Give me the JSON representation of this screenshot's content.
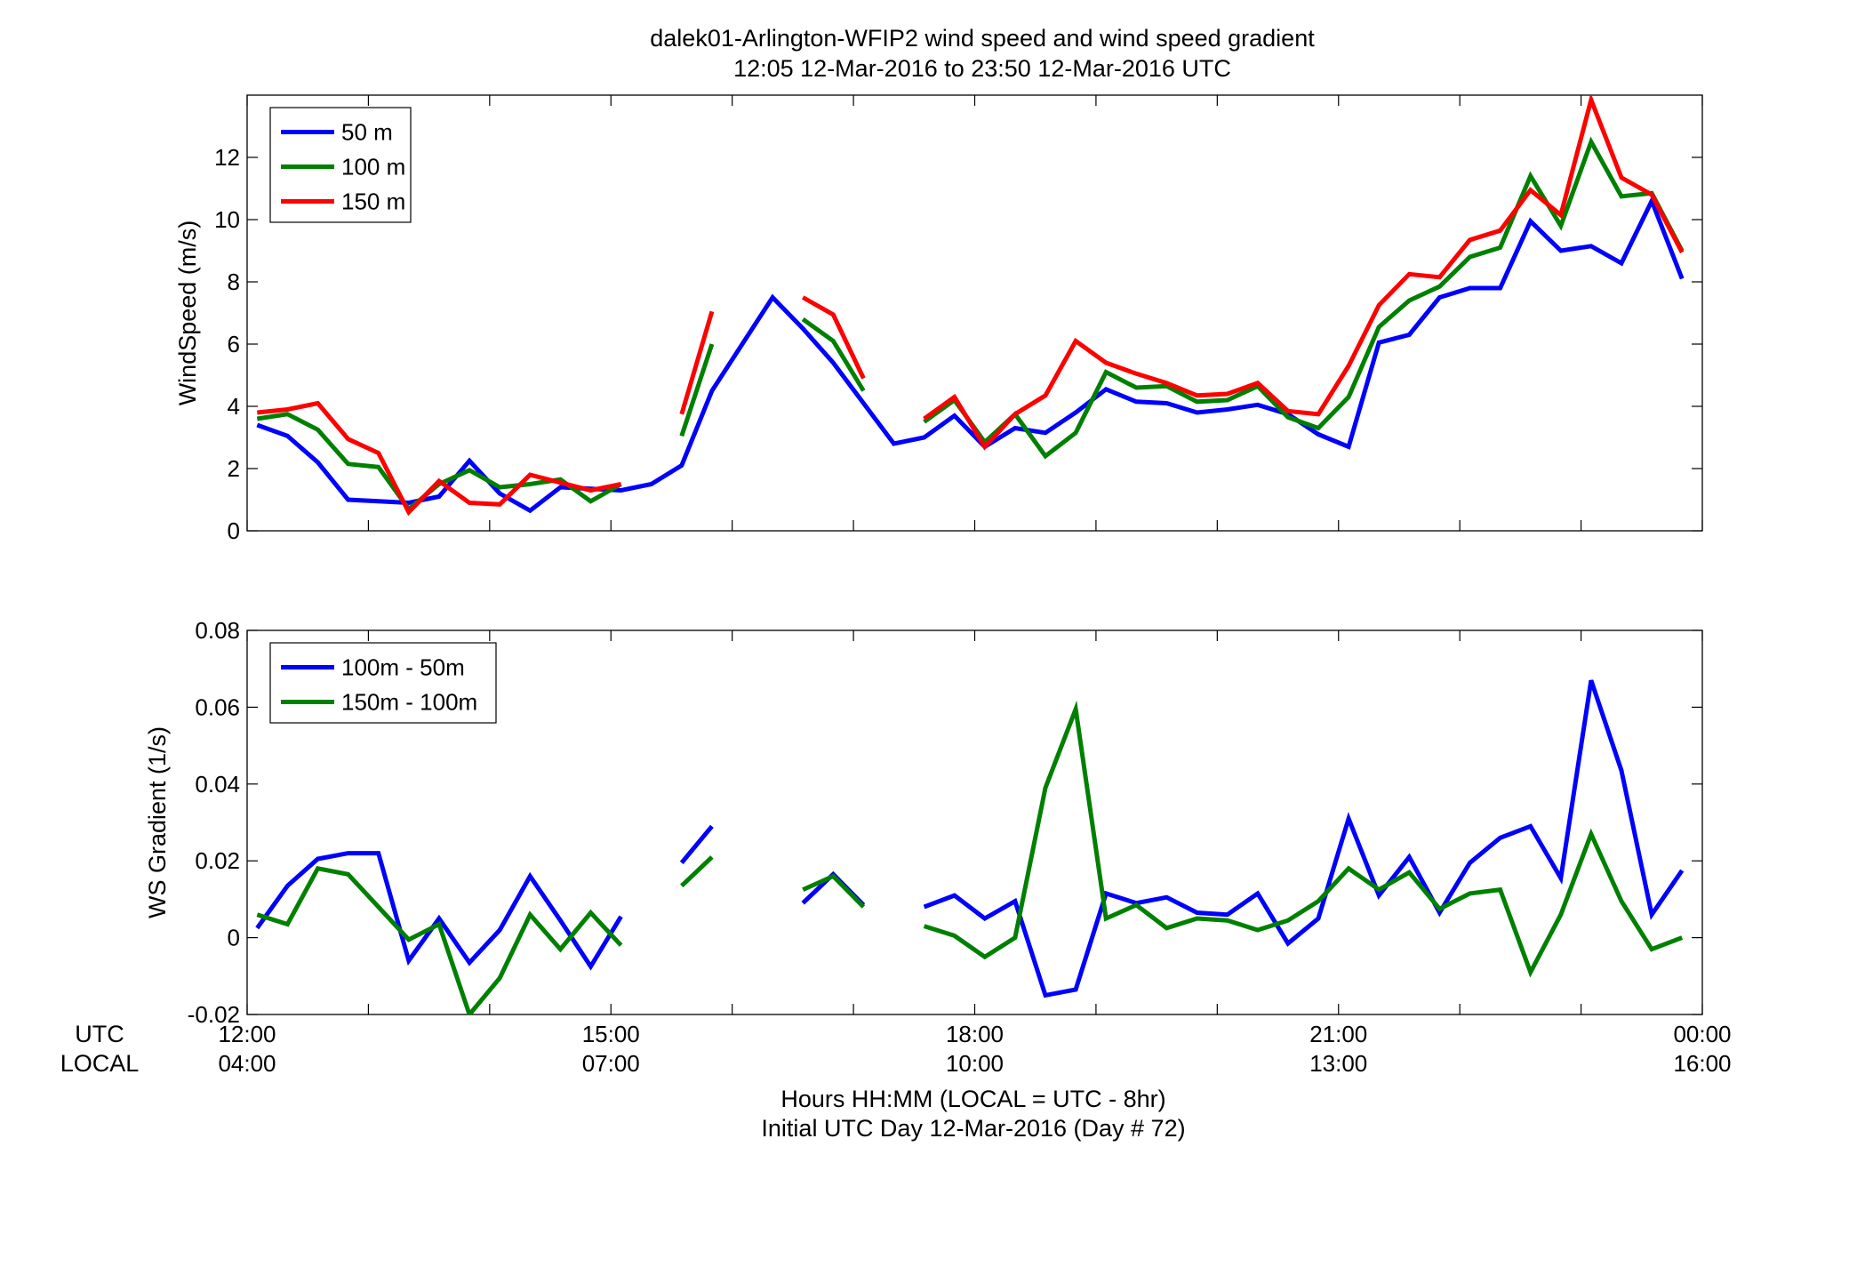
{
  "figure": {
    "title_line1": "dalek01-Arlington-WFIP2  wind speed and wind speed gradient",
    "title_line2": "12:05 12-Mar-2016 to 23:50 12-Mar-2016  UTC",
    "xlabel_line1": "Hours HH:MM  (LOCAL = UTC - 8hr)",
    "xlabel_line2": "Initial UTC Day 12-Mar-2016 (Day # 72)",
    "utc_row_label": "UTC",
    "local_row_label": "LOCAL",
    "utc_ticks": [
      "12:00",
      "15:00",
      "18:00",
      "21:00",
      "00:00"
    ],
    "local_ticks": [
      "04:00",
      "07:00",
      "10:00",
      "13:00",
      "16:00"
    ],
    "colors": {
      "blue": "#0000ff",
      "green": "#008000",
      "red": "#ff0000"
    }
  },
  "chart_data": [
    {
      "type": "line",
      "ylabel": "WindSpeed (m/s)",
      "xlim": [
        12.0,
        24.0
      ],
      "ylim": [
        0,
        14
      ],
      "yticks": [
        "0",
        "2",
        "4",
        "6",
        "8",
        "10",
        "12"
      ],
      "legend_position": "top-left",
      "x_hours": [
        12.083,
        12.333,
        12.583,
        12.833,
        13.083,
        13.333,
        13.583,
        13.833,
        14.083,
        14.333,
        14.583,
        14.833,
        15.083,
        15.333,
        15.583,
        15.833,
        16.083,
        16.333,
        16.583,
        16.833,
        17.083,
        17.333,
        17.583,
        17.833,
        18.083,
        18.333,
        18.583,
        18.833,
        19.083,
        19.333,
        19.583,
        19.833,
        20.083,
        20.333,
        20.583,
        20.833,
        21.083,
        21.333,
        21.583,
        21.833,
        22.083,
        22.333,
        22.583,
        22.833,
        23.083,
        23.333,
        23.583,
        23.833
      ],
      "series": [
        {
          "name": "50 m",
          "color": "#0000ff",
          "values": [
            3.4,
            3.05,
            2.2,
            1.0,
            0.95,
            0.9,
            1.1,
            2.25,
            1.2,
            0.65,
            1.4,
            1.35,
            1.3,
            1.5,
            2.1,
            4.5,
            6.0,
            7.5,
            6.5,
            5.4,
            4.1,
            2.8,
            3.0,
            3.7,
            2.7,
            3.3,
            3.15,
            3.8,
            4.55,
            4.15,
            4.1,
            3.8,
            3.9,
            4.05,
            3.75,
            3.1,
            2.7,
            6.05,
            6.3,
            7.5,
            7.8,
            7.8,
            9.95,
            9.0,
            9.15,
            8.6,
            10.6,
            8.1
          ]
        },
        {
          "name": "100 m",
          "color": "#008000",
          "values": [
            3.6,
            3.75,
            3.25,
            2.15,
            2.05,
            0.7,
            1.5,
            1.95,
            1.4,
            1.5,
            1.65,
            0.95,
            1.5,
            null,
            3.05,
            6.0,
            null,
            null,
            6.8,
            6.1,
            4.5,
            null,
            3.5,
            4.2,
            2.85,
            3.75,
            2.4,
            3.15,
            5.1,
            4.6,
            4.65,
            4.15,
            4.2,
            4.65,
            3.65,
            3.3,
            4.3,
            6.55,
            7.4,
            7.85,
            8.8,
            9.1,
            11.4,
            9.8,
            12.5,
            10.75,
            10.85,
            9.0
          ]
        },
        {
          "name": "150 m",
          "color": "#ff0000",
          "values": [
            3.8,
            3.9,
            4.1,
            2.95,
            2.5,
            0.6,
            1.6,
            0.9,
            0.85,
            1.8,
            1.55,
            1.3,
            1.5,
            null,
            3.75,
            7.05,
            null,
            null,
            7.5,
            6.95,
            4.9,
            null,
            3.6,
            4.3,
            2.7,
            3.75,
            4.35,
            6.1,
            5.4,
            5.05,
            4.75,
            4.35,
            4.4,
            4.75,
            3.85,
            3.75,
            5.3,
            7.25,
            8.25,
            8.15,
            9.35,
            9.65,
            10.95,
            10.15,
            13.85,
            11.35,
            10.8,
            8.95
          ]
        }
      ]
    },
    {
      "type": "line",
      "ylabel": "WS Gradient (1/s)",
      "xlim": [
        12.0,
        24.0
      ],
      "ylim": [
        -0.02,
        0.08
      ],
      "yticks": [
        "-0.02",
        "0",
        "0.02",
        "0.04",
        "0.06",
        "0.08"
      ],
      "legend_position": "top-left",
      "x_hours": [
        12.083,
        12.333,
        12.583,
        12.833,
        13.083,
        13.333,
        13.583,
        13.833,
        14.083,
        14.333,
        14.583,
        14.833,
        15.083,
        15.333,
        15.583,
        15.833,
        16.083,
        16.333,
        16.583,
        16.833,
        17.083,
        17.333,
        17.583,
        17.833,
        18.083,
        18.333,
        18.583,
        18.833,
        19.083,
        19.333,
        19.583,
        19.833,
        20.083,
        20.333,
        20.583,
        20.833,
        21.083,
        21.333,
        21.583,
        21.833,
        22.083,
        22.333,
        22.583,
        22.833,
        23.083,
        23.333,
        23.583,
        23.833
      ],
      "series": [
        {
          "name": "100m - 50m",
          "color": "#0000ff",
          "values": [
            0.0025,
            0.0135,
            0.0205,
            0.022,
            0.022,
            -0.006,
            0.005,
            -0.0065,
            0.002,
            0.016,
            0.0045,
            -0.0075,
            0.0055,
            null,
            0.0195,
            0.029,
            null,
            null,
            0.009,
            0.0165,
            0.0085,
            null,
            0.008,
            0.011,
            0.005,
            0.0095,
            -0.015,
            -0.0135,
            0.0115,
            0.009,
            0.0105,
            0.0065,
            0.006,
            0.0115,
            -0.0015,
            0.005,
            0.031,
            0.011,
            0.021,
            0.0065,
            0.0195,
            0.026,
            0.029,
            0.0155,
            0.067,
            0.0435,
            0.006,
            0.0175
          ]
        },
        {
          "name": "150m - 100m",
          "color": "#008000",
          "values": [
            0.006,
            0.0035,
            0.018,
            0.0165,
            0.008,
            -0.0005,
            0.0035,
            -0.02,
            -0.0105,
            0.006,
            -0.003,
            0.0065,
            -0.002,
            null,
            0.0135,
            0.021,
            null,
            null,
            0.0125,
            0.016,
            0.008,
            null,
            0.003,
            0.0005,
            -0.005,
            0.0,
            0.039,
            0.0595,
            0.005,
            0.0085,
            0.0025,
            0.005,
            0.0045,
            0.002,
            0.0045,
            0.0095,
            0.018,
            0.0125,
            0.017,
            0.0075,
            0.0115,
            0.0125,
            -0.009,
            0.006,
            0.027,
            0.0095,
            -0.003,
            0.0
          ]
        }
      ]
    }
  ]
}
